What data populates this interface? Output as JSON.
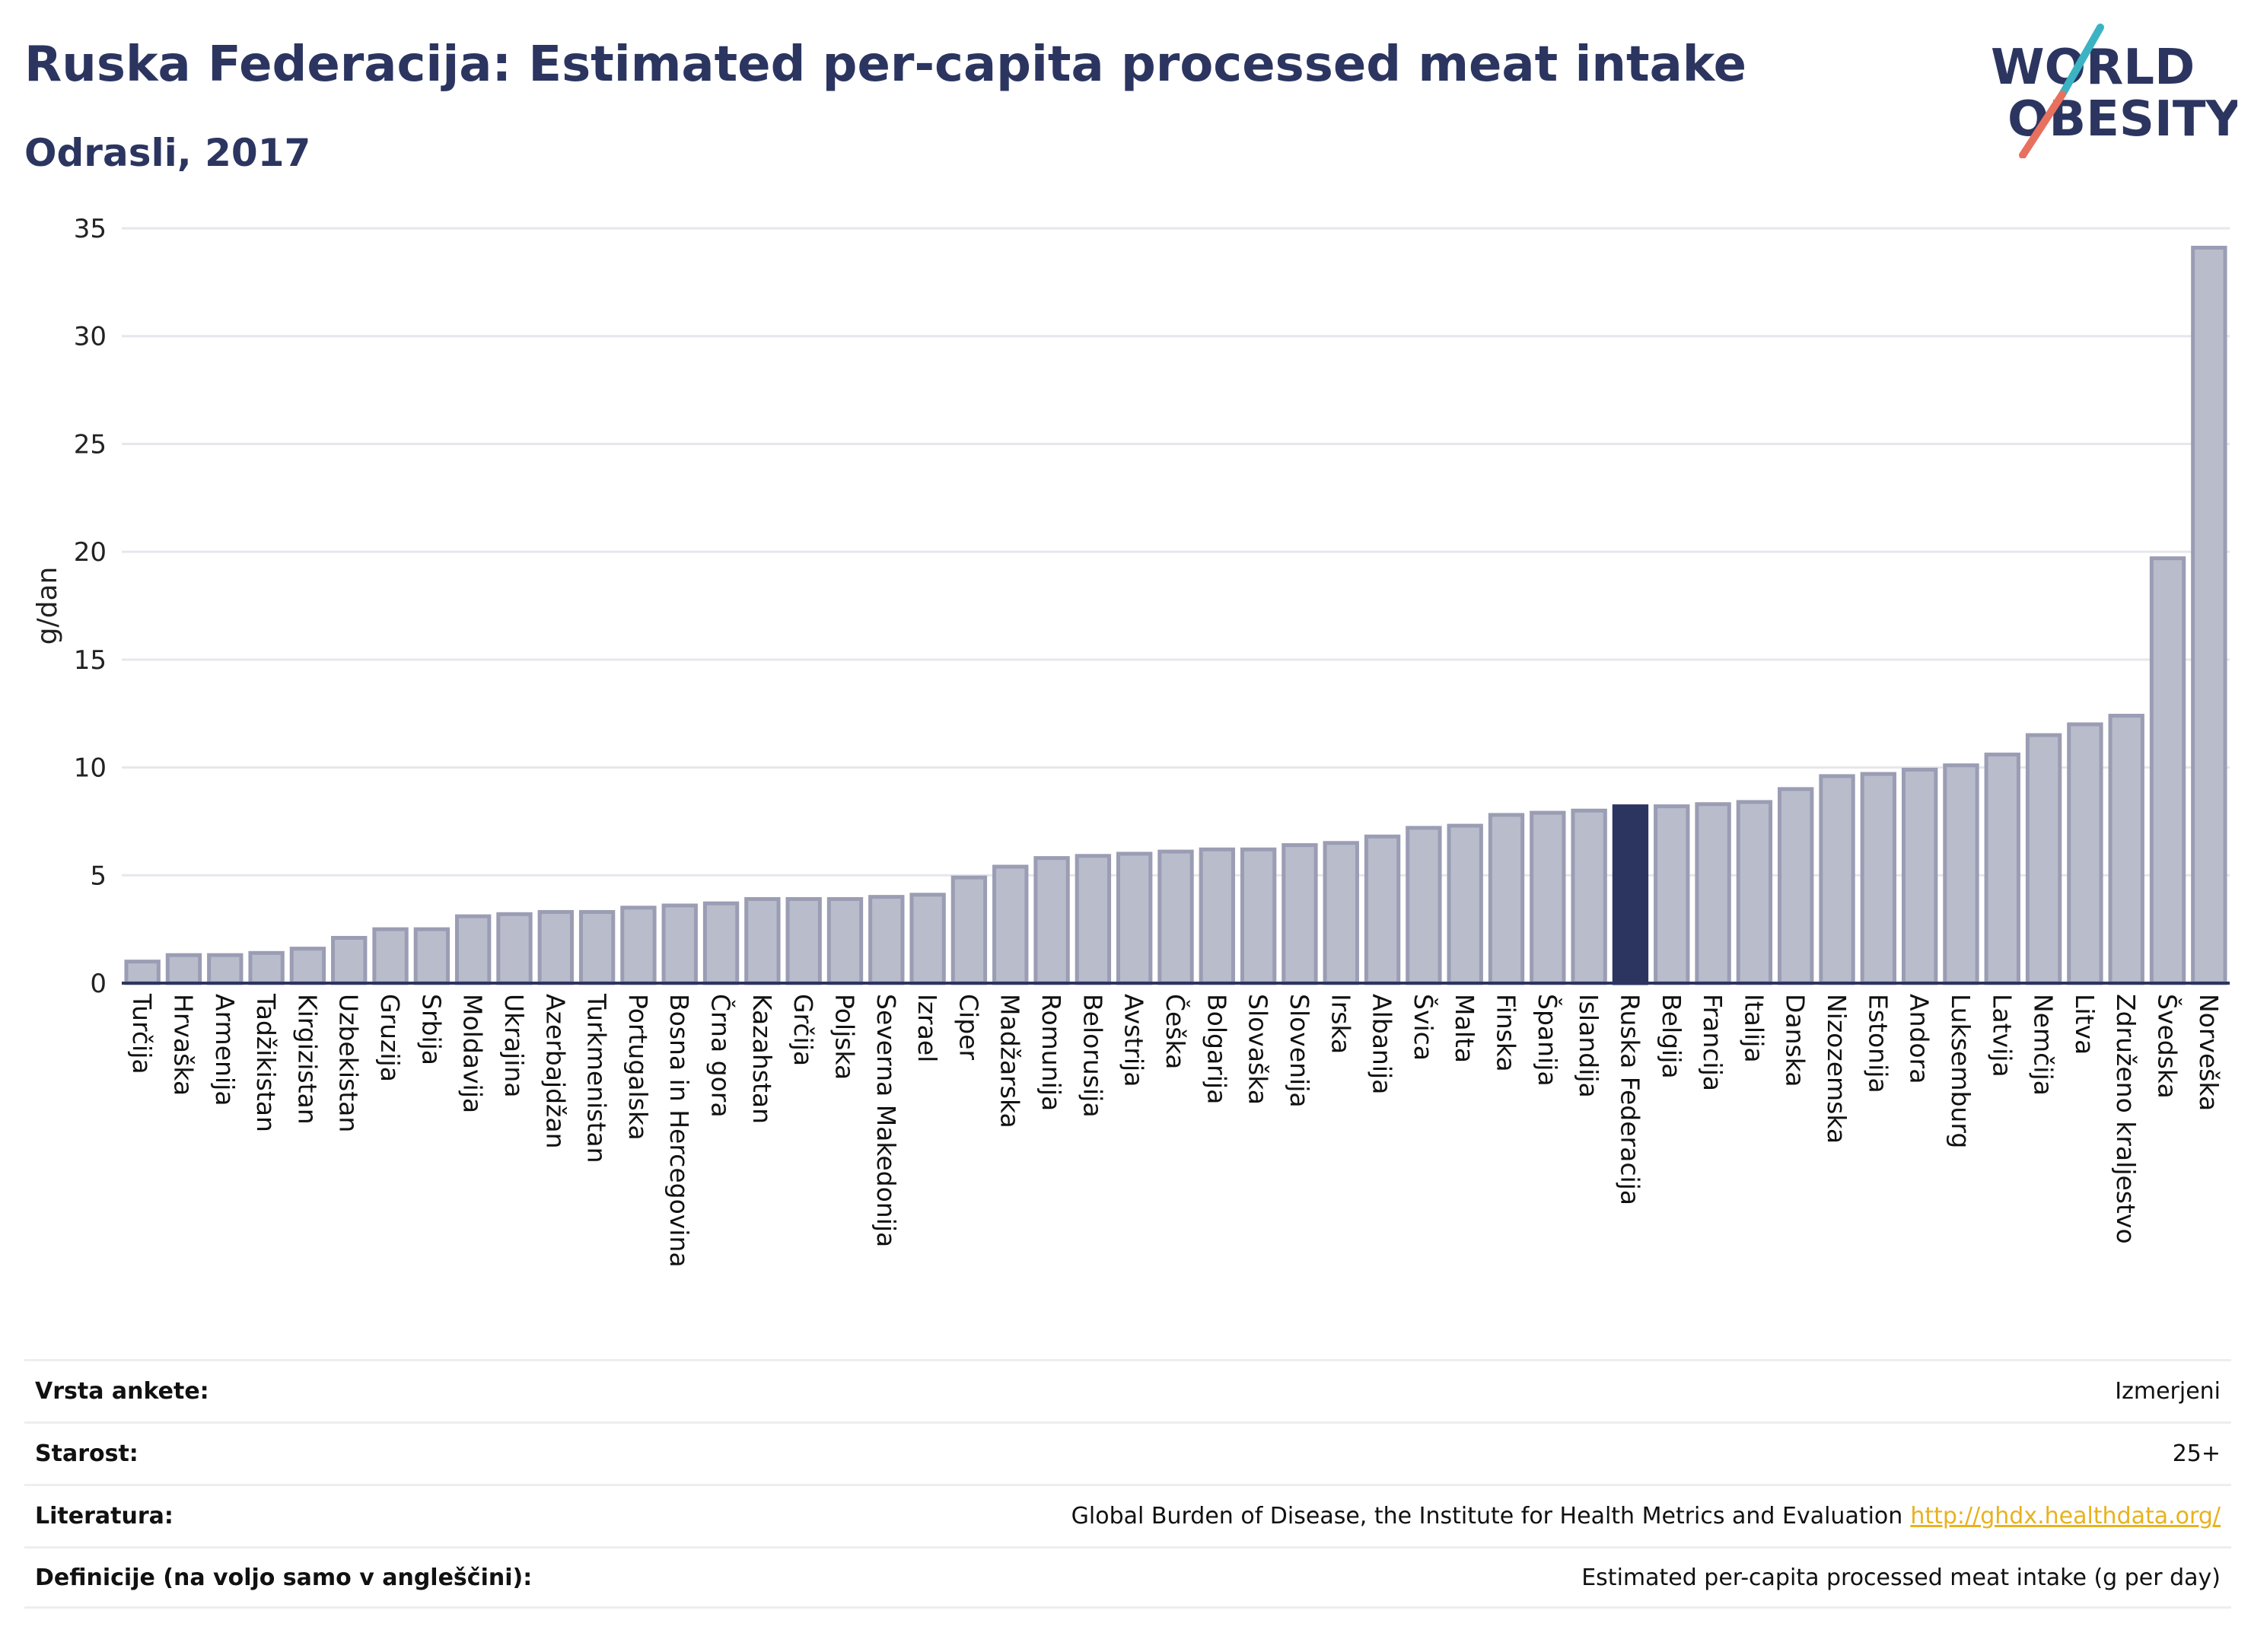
{
  "header": {
    "title": "Ruska Federacija: Estimated per-capita processed meat intake",
    "subtitle": "Odrasli, 2017"
  },
  "logo": {
    "line1": "WORLD",
    "line2": "OBESITY",
    "colors": {
      "text": "#2b3560",
      "slash_top": "#3bb3c3",
      "slash_bottom": "#e8705e"
    }
  },
  "colors": {
    "bar": "#b9bccb",
    "bar_border": "#9a9db3",
    "highlight": "#2b3560",
    "axis": "#2b3560",
    "grid": "#e6e6ec"
  },
  "chart_data": {
    "type": "bar",
    "title": "Ruska Federacija: Estimated per-capita processed meat intake",
    "subtitle": "Odrasli, 2017",
    "xlabel": "",
    "ylabel": "g/dan",
    "ylim": [
      0,
      35
    ],
    "yticks": [
      0,
      5,
      10,
      15,
      20,
      25,
      30,
      35
    ],
    "grid": true,
    "legend": "none",
    "highlight_category": "Ruska Federacija",
    "categories": [
      "Turčija",
      "Hrvaška",
      "Armenija",
      "Tadžikistan",
      "Kirgizistan",
      "Uzbekistan",
      "Gruzija",
      "Srbija",
      "Moldavija",
      "Ukrajina",
      "Azerbajdžan",
      "Turkmenistan",
      "Portugalska",
      "Bosna in Hercegovina",
      "Črna gora",
      "Kazahstan",
      "Grčija",
      "Poljska",
      "Severna Makedonija",
      "Izrael",
      "Ciper",
      "Madžarska",
      "Romunija",
      "Belorusija",
      "Avstrija",
      "Češka",
      "Bolgarija",
      "Slovaška",
      "Slovenija",
      "Irska",
      "Albanija",
      "Švica",
      "Malta",
      "Finska",
      "Španija",
      "Islandija",
      "Ruska Federacija",
      "Belgija",
      "Francija",
      "Italija",
      "Danska",
      "Nizozemska",
      "Estonija",
      "Andora",
      "Luksemburg",
      "Latvija",
      "Nemčija",
      "Litva",
      "Združeno kraljestvo",
      "Švedska",
      "Norveška"
    ],
    "values": [
      1.0,
      1.3,
      1.3,
      1.4,
      1.6,
      2.1,
      2.5,
      2.5,
      3.1,
      3.2,
      3.3,
      3.3,
      3.5,
      3.6,
      3.7,
      3.9,
      3.9,
      3.9,
      4.0,
      4.1,
      4.9,
      5.4,
      5.8,
      5.9,
      6.0,
      6.1,
      6.2,
      6.2,
      6.4,
      6.5,
      6.8,
      7.2,
      7.3,
      7.8,
      7.9,
      8.0,
      8.2,
      8.2,
      8.3,
      8.4,
      9.0,
      9.6,
      9.7,
      9.9,
      10.1,
      10.6,
      11.5,
      12.0,
      12.4,
      19.7,
      34.1
    ]
  },
  "meta": {
    "survey_label": "Vrsta ankete:",
    "survey_value": "Izmerjeni",
    "age_label": "Starost:",
    "age_value": "25+",
    "source_label": "Literatura:",
    "source_text": "Global Burden of Disease, the Institute for Health Metrics and Evaluation",
    "source_link": "http://ghdx.healthdata.org/",
    "definition_label": "Definicije (na voljo samo v angleščini):",
    "definition_value": "Estimated per-capita processed meat intake (g per day)"
  }
}
